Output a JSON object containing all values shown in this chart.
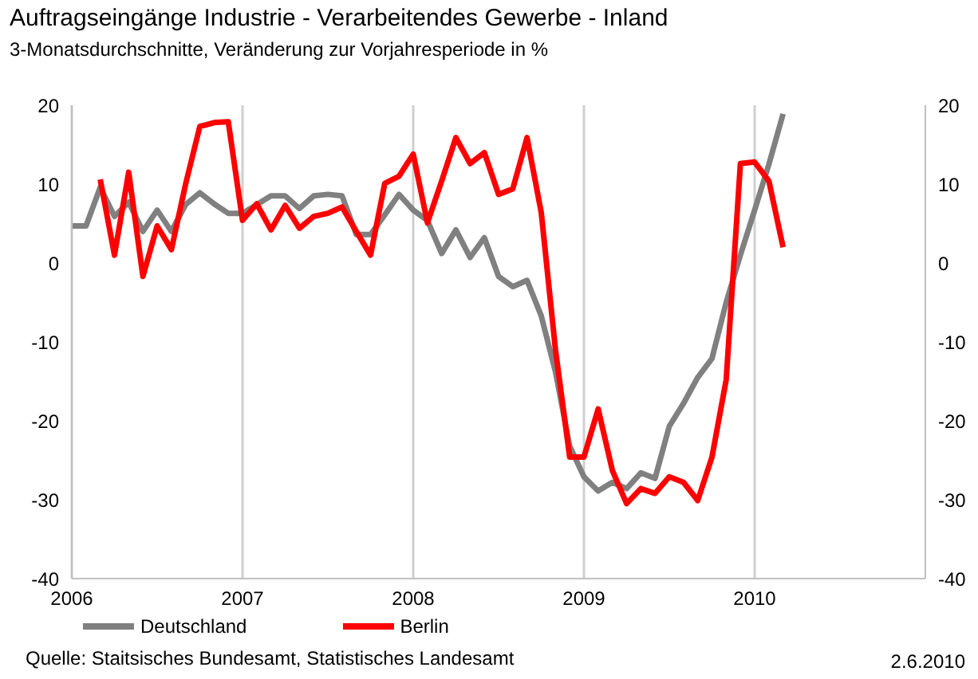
{
  "chart_data": {
    "type": "line",
    "title": "Auftragseingänge Industrie - Verarbeitendes Gewerbe - Inland",
    "subtitle": "3-Monatsdurchschnitte, Veränderung zur Vorjahresperiode in %",
    "x": [
      "2006-01",
      "2006-02",
      "2006-03",
      "2006-04",
      "2006-05",
      "2006-06",
      "2006-07",
      "2006-08",
      "2006-09",
      "2006-10",
      "2006-11",
      "2006-12",
      "2007-01",
      "2007-02",
      "2007-03",
      "2007-04",
      "2007-05",
      "2007-06",
      "2007-07",
      "2007-08",
      "2007-09",
      "2007-10",
      "2007-11",
      "2007-12",
      "2008-01",
      "2008-02",
      "2008-03",
      "2008-04",
      "2008-05",
      "2008-06",
      "2008-07",
      "2008-08",
      "2008-09",
      "2008-10",
      "2008-11",
      "2008-12",
      "2009-01",
      "2009-02",
      "2009-03",
      "2009-04",
      "2009-05",
      "2009-06",
      "2009-07",
      "2009-08",
      "2009-09",
      "2009-10",
      "2009-11",
      "2009-12",
      "2010-01",
      "2010-02",
      "2010-03"
    ],
    "series": [
      {
        "name": "Deutschland",
        "color": "#808080",
        "values": [
          4.7,
          4.7,
          9.6,
          5.9,
          7.7,
          4.0,
          6.7,
          4.0,
          7.4,
          8.9,
          7.5,
          6.3,
          6.3,
          7.4,
          8.5,
          8.5,
          6.9,
          8.5,
          8.7,
          8.5,
          3.6,
          3.6,
          6.1,
          8.7,
          6.7,
          5.4,
          1.2,
          4.2,
          0.7,
          3.2,
          -1.7,
          -3.0,
          -2.2,
          -6.7,
          -13.8,
          -23.2,
          -27.1,
          -28.9,
          -27.8,
          -28.6,
          -26.6,
          -27.3,
          -20.7,
          -17.8,
          -14.5,
          -12.1,
          -5.0,
          1.0,
          6.7,
          12.5,
          18.9
        ]
      },
      {
        "name": "Berlin",
        "color": "#ff0000",
        "values": [
          null,
          null,
          10.6,
          1.0,
          11.5,
          -1.7,
          4.7,
          1.7,
          10.0,
          17.3,
          17.8,
          17.9,
          5.4,
          7.5,
          4.2,
          7.3,
          4.4,
          5.9,
          6.3,
          7.1,
          4.0,
          1.0,
          10.1,
          11.0,
          13.8,
          5.1,
          10.4,
          15.9,
          12.6,
          14.0,
          8.7,
          9.4,
          15.9,
          6.4,
          -11.0,
          -24.6,
          -24.6,
          -18.5,
          -26.3,
          -30.5,
          -28.6,
          -29.2,
          -27.1,
          -27.8,
          -30.1,
          -24.6,
          -14.8,
          12.6,
          12.8,
          10.4,
          2.0
        ]
      }
    ],
    "xlim": [
      "2006",
      "2011"
    ],
    "xticks": [
      "2006",
      "2007",
      "2008",
      "2009",
      "2010"
    ],
    "ylim": [
      -40,
      20
    ],
    "yticks": [
      -40,
      -30,
      -20,
      -10,
      0,
      10,
      20
    ],
    "y2lim": [
      -40,
      20
    ],
    "y2ticks": [
      -40,
      -30,
      -20,
      -10,
      0,
      10,
      20
    ],
    "grid": true,
    "legend": "bottom",
    "line_style": "solid",
    "marker": "none",
    "annotations": [
      "Quelle: Staitsisches Bundesamt, Statistisches Landesamt",
      "2.6.2010"
    ]
  }
}
